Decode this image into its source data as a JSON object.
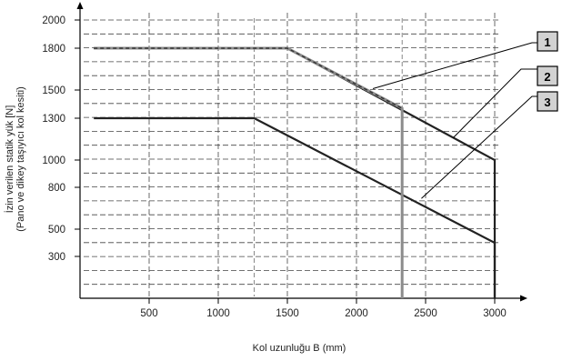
{
  "chart_data": {
    "type": "line",
    "title": "",
    "xlabel": "Kol uzunluğu B (mm)",
    "ylabel": "İzin verilen statik yük [N]",
    "ylabel_line2": "(Pano ve dikey taşıyıcı kol kesiti)",
    "x_ticks": [
      500,
      1000,
      1500,
      2000,
      2500,
      3000
    ],
    "y_ticks": [
      300,
      500,
      800,
      1000,
      1300,
      1500,
      1800,
      2000
    ],
    "xlim": [
      0,
      3150
    ],
    "grid": true,
    "series": [
      {
        "name": "1",
        "style": "dashed",
        "color": "#8c8c8c",
        "x": [
          100,
          1500,
          2330,
          2330
        ],
        "y": [
          1800,
          1800,
          1370,
          0
        ]
      },
      {
        "name": "2",
        "style": "solid",
        "color": "#222222",
        "x": [
          100,
          1500,
          3000,
          3000
        ],
        "y": [
          1800,
          1800,
          1000,
          0
        ]
      },
      {
        "name": "3",
        "style": "solid",
        "color": "#222222",
        "x": [
          100,
          1260,
          3000,
          3000
        ],
        "y": [
          1300,
          1300,
          400,
          0
        ]
      }
    ],
    "callouts": [
      "1",
      "2",
      "3"
    ]
  }
}
